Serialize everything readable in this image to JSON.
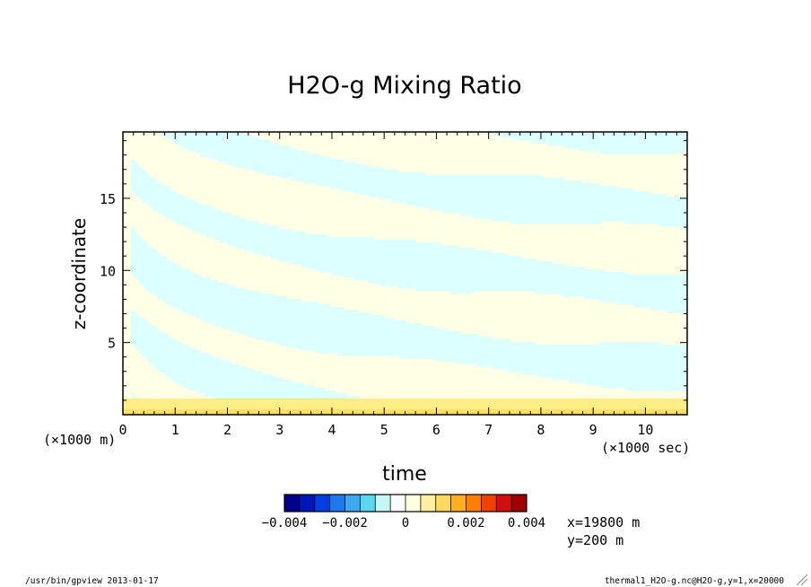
{
  "chart_data": {
    "type": "heatmap",
    "title": "H2O-g Mixing Ratio",
    "xlabel": "time",
    "ylabel": "z-coordinate",
    "x_unit_label": "(×1000 sec)",
    "y_unit_label": "(×1000 m)",
    "xlim": [
      0,
      10.8
    ],
    "ylim": [
      0,
      19.6
    ],
    "x_ticks": [
      "0",
      "1",
      "2",
      "3",
      "4",
      "5",
      "6",
      "7",
      "8",
      "9",
      "10"
    ],
    "y_ticks": [
      "5",
      "10",
      "15"
    ],
    "colorbar": {
      "min": -0.004,
      "max": 0.004,
      "tick_labels": [
        "−0.004",
        "−0.002",
        "0",
        "0.002",
        "0.004"
      ],
      "colors": [
        "#00008b",
        "#0018b8",
        "#0040e0",
        "#1e78f0",
        "#3ca8f0",
        "#5ad8f0",
        "#c4f8f8",
        "#f8fcfc",
        "#ffffe0",
        "#fff0a0",
        "#ffd860",
        "#ffb020",
        "#ff8000",
        "#f04000",
        "#d01010",
        "#a00000"
      ]
    },
    "fields": {
      "positive_color": "#ffffe6",
      "negative_color": "#dcffff",
      "surface_layer_color": "#ffee88",
      "surface_core_color": "#ffe060"
    },
    "grid": false,
    "legend": "bottom-center"
  },
  "annotations": {
    "position_x": "x=19800 m",
    "position_y": "y=200 m"
  },
  "footer": {
    "left": "/usr/bin/gpview  2013-01-17",
    "right": "thermal1_H2O-g.nc@H2O-g,y=1,x=20000"
  }
}
